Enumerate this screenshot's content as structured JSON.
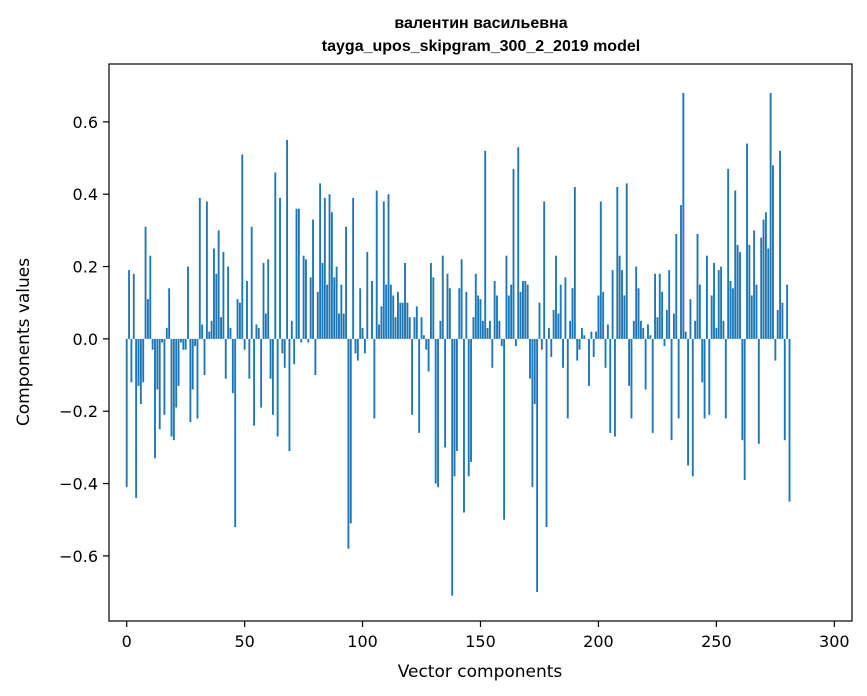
{
  "chart_data": {
    "type": "bar",
    "title": "валентин васильевна",
    "subtitle": "tayga_upos_skipgram_300_2_2019 model",
    "xlabel": "Vector components",
    "ylabel": "Components values",
    "xlim": [
      -7.5,
      307.5
    ],
    "ylim": [
      -0.78,
      0.76
    ],
    "xticks": [
      0,
      50,
      100,
      150,
      200,
      250,
      300
    ],
    "yticks": [
      -0.6,
      -0.4,
      -0.2,
      0.0,
      0.2,
      0.4,
      0.6
    ],
    "ytick_labels": [
      "−0.6",
      "−0.4",
      "−0.2",
      "0.0",
      "0.2",
      "0.4",
      "0.6"
    ],
    "bar_color": "#1f77b4",
    "grid": false,
    "values": [
      -0.41,
      0.19,
      -0.12,
      0.18,
      -0.44,
      -0.13,
      -0.18,
      -0.12,
      0.31,
      0.11,
      0.23,
      -0.03,
      -0.33,
      -0.14,
      -0.25,
      -0.01,
      -0.21,
      0.03,
      0.14,
      -0.27,
      -0.28,
      -0.19,
      -0.13,
      -0.01,
      -0.03,
      -0.03,
      0.2,
      -0.23,
      -0.14,
      -0.02,
      -0.22,
      0.39,
      0.04,
      -0.1,
      0.38,
      0.02,
      0.05,
      0.25,
      0.18,
      0.3,
      0.06,
      0.24,
      -0.11,
      0.2,
      0.03,
      -0.15,
      -0.52,
      0.11,
      0.1,
      0.51,
      -0.03,
      0.16,
      -0.11,
      0.31,
      -0.24,
      0.04,
      0.03,
      -0.19,
      0.21,
      0.07,
      0.22,
      -0.11,
      -0.21,
      0.46,
      -0.27,
      0.39,
      -0.04,
      -0.08,
      0.55,
      -0.31,
      0.05,
      -0.07,
      0.36,
      0.36,
      -0.01,
      0.23,
      0.22,
      -0.01,
      0.17,
      0.33,
      -0.1,
      0.13,
      0.43,
      0.21,
      0.39,
      0.15,
      0.4,
      0.35,
      0.17,
      0.2,
      0.07,
      0.15,
      0.07,
      0.31,
      -0.58,
      -0.51,
      0.39,
      -0.04,
      -0.06,
      0.14,
      0.03,
      -0.04,
      0.24,
      0.0,
      0.16,
      -0.22,
      0.41,
      0.04,
      0.09,
      0.38,
      0.15,
      0.4,
      0.15,
      0.12,
      0.06,
      0.13,
      0.1,
      0.1,
      0.21,
      0.1,
      0.06,
      -0.21,
      0.06,
      0.09,
      -0.26,
      0.06,
      0.01,
      -0.03,
      -0.09,
      0.21,
      0.17,
      -0.4,
      -0.41,
      0.05,
      0.23,
      -0.3,
      0.18,
      0.14,
      -0.71,
      -0.38,
      -0.31,
      0.14,
      0.22,
      -0.48,
      0.13,
      -0.38,
      -0.34,
      0.06,
      0.18,
      0.12,
      0.11,
      0.05,
      0.52,
      0.03,
      0.05,
      -0.08,
      0.16,
      0.12,
      0.05,
      -0.02,
      -0.5,
      0.23,
      0.12,
      0.15,
      0.47,
      -0.02,
      0.53,
      0.13,
      0.16,
      0.16,
      0.15,
      -0.11,
      -0.41,
      -0.18,
      -0.7,
      0.1,
      -0.03,
      0.38,
      -0.52,
      0.03,
      -0.05,
      0.08,
      0.23,
      0.07,
      0.15,
      -0.08,
      0.17,
      -0.22,
      0.05,
      0.14,
      0.42,
      -0.06,
      -0.03,
      0.03,
      0.01,
      0.0,
      -0.13,
      0.02,
      -0.05,
      0.02,
      0.12,
      0.38,
      0.13,
      -0.08,
      0.04,
      -0.26,
      0.19,
      -0.27,
      0.42,
      0.23,
      0.19,
      0.12,
      0.43,
      -0.13,
      -0.22,
      0.05,
      0.2,
      0.14,
      0.05,
      0.03,
      -0.14,
      0.04,
      0.01,
      -0.26,
      0.18,
      0.06,
      0.18,
      0.13,
      -0.02,
      0.08,
      0.19,
      -0.28,
      0.07,
      0.29,
      -0.22,
      0.37,
      0.68,
      0.02,
      -0.35,
      0.11,
      -0.38,
      0.05,
      0.29,
      0.15,
      -0.12,
      -0.22,
      0.23,
      -0.21,
      0.12,
      0.21,
      0.03,
      0.19,
      0.2,
      0.05,
      -0.22,
      0.47,
      0.16,
      0.14,
      0.41,
      0.26,
      0.24,
      -0.28,
      -0.39,
      0.54,
      0.26,
      0.12,
      0.3,
      0.15,
      -0.29,
      0.28,
      0.33,
      0.35,
      0.25,
      0.68,
      0.48,
      -0.06,
      0.08,
      0.52,
      0.1,
      -0.28,
      0.15,
      -0.45
    ]
  }
}
